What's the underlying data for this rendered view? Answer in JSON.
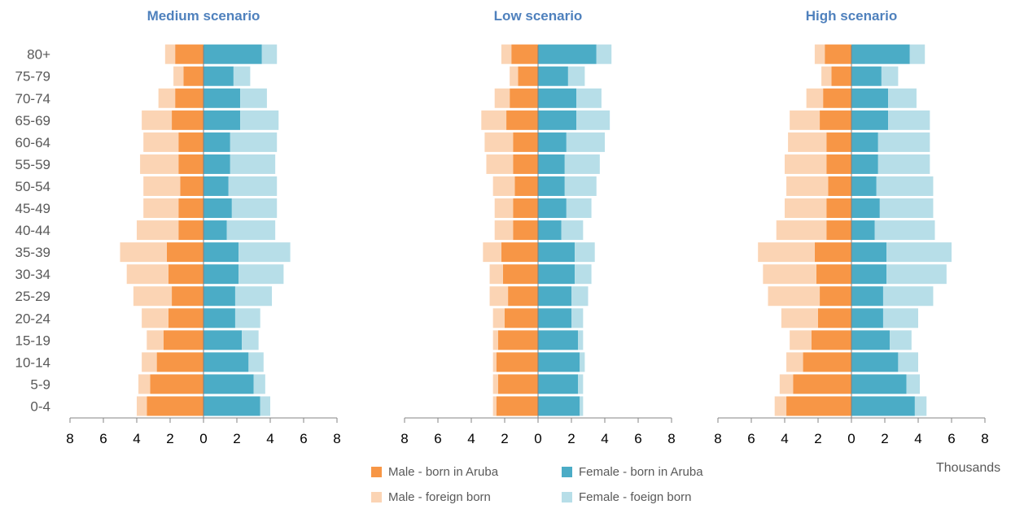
{
  "chart_data": {
    "type": "bar",
    "orientation": "horizontal",
    "subtype": "population-pyramid",
    "units_label": "Thousands",
    "categories": [
      "0-4",
      "5-9",
      "10-14",
      "15-19",
      "20-24",
      "25-29",
      "30-34",
      "35-39",
      "40-44",
      "45-49",
      "50-54",
      "55-59",
      "60-64",
      "65-69",
      "70-74",
      "75-79",
      "80+"
    ],
    "xlim": [
      -8,
      8
    ],
    "x_ticks": [
      -8,
      -6,
      -4,
      -2,
      0,
      2,
      4,
      6,
      8
    ],
    "x_tick_labels": [
      "8",
      "6",
      "4",
      "2",
      "0",
      "2",
      "4",
      "6",
      "8"
    ],
    "grid": false,
    "legend_position": "bottom",
    "series_meta": [
      {
        "key": "male_aruba",
        "name": "Male - born in Aruba",
        "color": "#F79646",
        "side": "left"
      },
      {
        "key": "female_aruba",
        "name": "Female - born in Aruba",
        "color": "#4BACC6",
        "side": "right"
      },
      {
        "key": "male_foreign",
        "name": "Male - foreign born",
        "color": "#FBD4B4",
        "side": "left"
      },
      {
        "key": "female_foreign",
        "name": "Female - foeign born",
        "color": "#B7DEE8",
        "side": "right"
      }
    ],
    "panels": [
      {
        "title": "Medium scenario",
        "series": {
          "male_aruba": [
            3.4,
            3.2,
            2.8,
            2.4,
            2.1,
            1.9,
            2.1,
            2.2,
            1.5,
            1.5,
            1.4,
            1.5,
            1.5,
            1.9,
            1.7,
            1.2,
            1.7
          ],
          "male_foreign": [
            0.6,
            0.7,
            0.9,
            1.0,
            1.6,
            2.3,
            2.5,
            2.8,
            2.5,
            2.1,
            2.2,
            2.3,
            2.1,
            1.8,
            1.0,
            0.6,
            0.6
          ],
          "female_aruba": [
            3.4,
            3.0,
            2.7,
            2.3,
            1.9,
            1.9,
            2.1,
            2.1,
            1.4,
            1.7,
            1.5,
            1.6,
            1.6,
            2.2,
            2.2,
            1.8,
            3.5
          ],
          "female_foreign": [
            0.6,
            0.7,
            0.9,
            1.0,
            1.5,
            2.2,
            2.7,
            3.1,
            2.9,
            2.7,
            2.9,
            2.7,
            2.8,
            2.3,
            1.6,
            1.0,
            0.9
          ]
        }
      },
      {
        "title": "Low scenario",
        "series": {
          "male_aruba": [
            2.5,
            2.4,
            2.5,
            2.4,
            2.0,
            1.8,
            2.1,
            2.2,
            1.5,
            1.5,
            1.4,
            1.5,
            1.5,
            1.9,
            1.7,
            1.2,
            1.6
          ],
          "male_foreign": [
            0.2,
            0.3,
            0.2,
            0.3,
            0.7,
            1.1,
            0.8,
            1.1,
            1.1,
            1.1,
            1.3,
            1.6,
            1.7,
            1.5,
            0.9,
            0.5,
            0.6
          ],
          "female_aruba": [
            2.5,
            2.4,
            2.5,
            2.4,
            2.0,
            2.0,
            2.2,
            2.2,
            1.4,
            1.7,
            1.6,
            1.6,
            1.7,
            2.3,
            2.3,
            1.8,
            3.5
          ],
          "female_foreign": [
            0.2,
            0.3,
            0.3,
            0.3,
            0.7,
            1.0,
            1.0,
            1.2,
            1.3,
            1.5,
            1.9,
            2.1,
            2.3,
            2.0,
            1.5,
            1.0,
            0.9
          ]
        }
      },
      {
        "title": "High scenario",
        "series": {
          "male_aruba": [
            3.9,
            3.5,
            2.9,
            2.4,
            2.0,
            1.9,
            2.1,
            2.2,
            1.5,
            1.5,
            1.4,
            1.5,
            1.5,
            1.9,
            1.7,
            1.2,
            1.6
          ],
          "male_foreign": [
            0.7,
            0.8,
            1.0,
            1.3,
            2.2,
            3.1,
            3.2,
            3.4,
            3.0,
            2.5,
            2.5,
            2.5,
            2.3,
            1.8,
            1.0,
            0.6,
            0.6
          ],
          "female_aruba": [
            3.8,
            3.3,
            2.8,
            2.3,
            1.9,
            1.9,
            2.1,
            2.1,
            1.4,
            1.7,
            1.5,
            1.6,
            1.6,
            2.2,
            2.2,
            1.8,
            3.5
          ],
          "female_foreign": [
            0.7,
            0.8,
            1.2,
            1.3,
            2.1,
            3.0,
            3.6,
            3.9,
            3.6,
            3.2,
            3.4,
            3.1,
            3.1,
            2.5,
            1.7,
            1.0,
            0.9
          ]
        }
      }
    ]
  }
}
